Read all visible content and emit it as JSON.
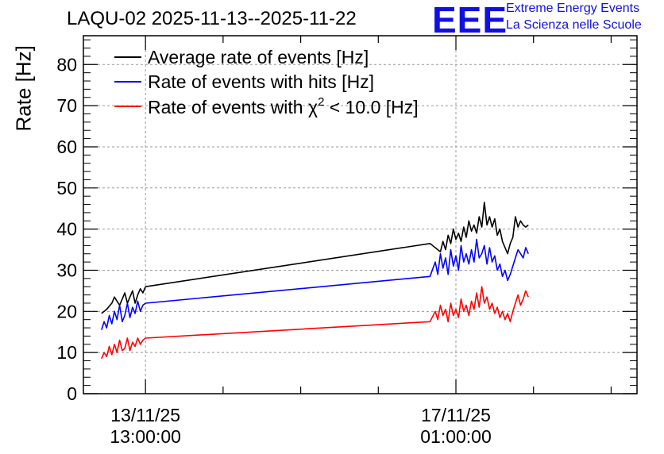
{
  "header": {
    "title": "LAQU-02 2025-11-13--2025-11-22",
    "logo_text": "EEE",
    "org_line1": "Extreme Energy Events",
    "org_line2": "La Scienza nelle Scuole"
  },
  "colors": {
    "black": "#000000",
    "blue": "#0000ff",
    "red": "#ff0000",
    "logo": "#1010e0"
  },
  "chart_data": {
    "type": "line",
    "title": "LAQU-02 2025-11-13--2025-11-22",
    "ylabel": "Rate [Hz]",
    "xlabel": "",
    "ylim": [
      0,
      87
    ],
    "yticks": [
      0,
      10,
      20,
      30,
      40,
      50,
      60,
      70,
      80
    ],
    "xlim_hours": [
      -12,
      95
    ],
    "xticks": [
      {
        "hours": 0,
        "line1": "13/11/25",
        "line2": "13:00:00"
      },
      {
        "hours": 60,
        "line1": "17/11/25",
        "line2": "01:00:00"
      }
    ],
    "grid": true,
    "legend_position": "top-left",
    "series": [
      {
        "name": "Average rate of events [Hz]",
        "color": "#000000",
        "segments": [
          {
            "x": [
              -8.5,
              -7.5,
              -6.5,
              -6,
              -5.5,
              -5,
              -4.5,
              -4,
              -3.5,
              -3,
              -2.5,
              -2,
              -1.5,
              -1,
              -0.5,
              0
            ],
            "y": [
              19.5,
              20.5,
              22,
              23.5,
              22.5,
              21.5,
              23,
              24.5,
              22,
              23.5,
              25,
              22,
              24,
              25.5,
              24.5,
              26
            ]
          },
          {
            "x": [
              0,
              55,
              57,
              57.5,
              58,
              58.5,
              59,
              59.5,
              60,
              60.5,
              61,
              61.5,
              62,
              62.5,
              63,
              63.5,
              64,
              64.5,
              65,
              65.5,
              66,
              66.5,
              67,
              67.5,
              68,
              68.5,
              69,
              69.5,
              70,
              70.5,
              71,
              71.5,
              72,
              72.5,
              73,
              73.5,
              74
            ],
            "y": [
              26,
              36.5,
              34.5,
              37,
              35,
              38.5,
              36.5,
              40,
              37.5,
              39,
              37,
              40.5,
              38,
              42,
              39.5,
              41,
              39,
              43,
              40.5,
              46.5,
              41,
              43,
              40.5,
              42.5,
              38.5,
              40,
              37,
              35.5,
              34,
              36.5,
              38,
              43,
              40.5,
              42,
              41,
              40.5,
              41
            ]
          }
        ]
      },
      {
        "name": "Rate of events with hits [Hz]",
        "color": "#0000ff",
        "segments": [
          {
            "x": [
              -8.5,
              -8,
              -7.5,
              -7,
              -6.5,
              -6,
              -5.5,
              -5,
              -4.5,
              -4,
              -3.5,
              -3,
              -2.5,
              -2,
              -1.5,
              -1,
              -0.5,
              0
            ],
            "y": [
              15.5,
              17.5,
              16,
              19,
              17,
              20,
              18,
              21.5,
              17.5,
              19,
              22,
              18.5,
              21,
              19.5,
              22.5,
              20,
              21.5,
              22
            ]
          },
          {
            "x": [
              0,
              55,
              56,
              56.5,
              57,
              57.5,
              58,
              58.5,
              59,
              59.5,
              60,
              60.5,
              61,
              61.5,
              62,
              62.5,
              63,
              63.5,
              64,
              64.5,
              65,
              65.5,
              66,
              66.5,
              67,
              67.5,
              68,
              68.5,
              69,
              69.5,
              70,
              70.5,
              71,
              71.5,
              72,
              72.5,
              73,
              73.5,
              74
            ],
            "y": [
              22,
              28.5,
              32,
              29,
              34,
              30.5,
              33,
              29,
              35,
              31,
              33.5,
              30,
              36,
              32,
              34,
              31.5,
              35,
              32,
              37.5,
              33,
              34,
              36,
              31.5,
              35.5,
              32,
              33.5,
              30,
              31.5,
              28.5,
              30,
              27.5,
              29,
              31,
              33,
              35,
              34,
              33,
              35.5,
              34
            ]
          }
        ]
      },
      {
        "name": "Rate of events with χ² < 10.0 [Hz]",
        "color": "#ff0000",
        "segments": [
          {
            "x": [
              -8.5,
              -8,
              -7.5,
              -7,
              -6.5,
              -6,
              -5.5,
              -5,
              -4.5,
              -4,
              -3.5,
              -3,
              -2.5,
              -2,
              -1.5,
              -1,
              -0.5,
              0
            ],
            "y": [
              8.5,
              10,
              9,
              11.5,
              9.5,
              12,
              10,
              13,
              10.5,
              11,
              13.5,
              10.5,
              12.5,
              11.5,
              13.5,
              12,
              13,
              13.5
            ]
          },
          {
            "x": [
              0,
              55,
              56,
              56.5,
              57,
              57.5,
              58,
              58.5,
              59,
              59.5,
              60,
              60.5,
              61,
              61.5,
              62,
              62.5,
              63,
              63.5,
              64,
              64.5,
              65,
              65.5,
              66,
              66.5,
              67,
              67.5,
              68,
              68.5,
              69,
              69.5,
              70,
              70.5,
              71,
              71.5,
              72,
              72.5,
              73,
              73.5,
              74
            ],
            "y": [
              13.5,
              17.5,
              20,
              18,
              21.5,
              19,
              20.5,
              17.5,
              22,
              19,
              20.5,
              18.5,
              23,
              20,
              21.5,
              19,
              22.5,
              20.5,
              24.5,
              21,
              26,
              22,
              23.5,
              20.5,
              22,
              19.5,
              21,
              18.5,
              20,
              18,
              19.5,
              17.5,
              20,
              22,
              24,
              21.5,
              23,
              25,
              23.5
            ]
          }
        ]
      }
    ]
  },
  "legend": {
    "items": [
      {
        "label": "Average rate of events [Hz]"
      },
      {
        "label": "Rate of events with hits [Hz]"
      },
      {
        "label_pre": "Rate of events with ",
        "label_chi": "χ",
        "label_sup": "2",
        "label_post": " < 10.0 [Hz]"
      }
    ]
  }
}
